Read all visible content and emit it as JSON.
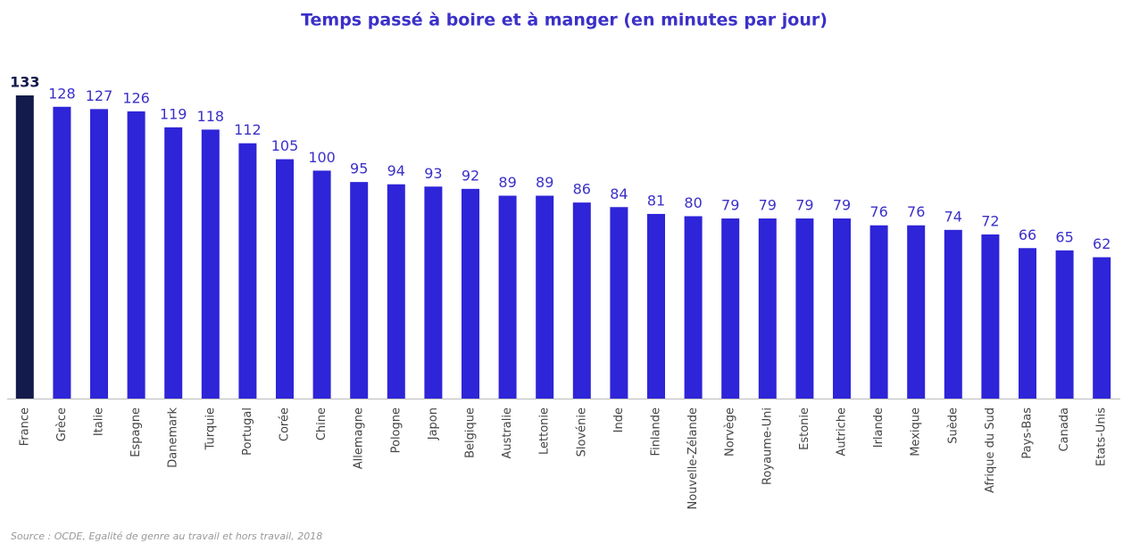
{
  "chart_data": {
    "type": "bar",
    "title": "Temps passé à boire et à manger (en minutes par jour)",
    "source": "Source : OCDE, Egalité de genre au travail et hors travail, 2018",
    "categories": [
      "France",
      "Grèce",
      "Italie",
      "Espagne",
      "Danemark",
      "Turquie",
      "Portugal",
      "Corée",
      "Chine",
      "Allemagne",
      "Pologne",
      "Japon",
      "Belgique",
      "Australie",
      "Lettonie",
      "Slovénie",
      "Inde",
      "Finlande",
      "Nouvelle-Zélande",
      "Norvège",
      "Royaume-Uni",
      "Estonie",
      "Autriche",
      "Irlande",
      "Mexique",
      "Suède",
      "Afrique du Sud",
      "Pays-Bas",
      "Canada",
      "Etats-Unis"
    ],
    "values": [
      133,
      128,
      127,
      126,
      119,
      118,
      112,
      105,
      100,
      95,
      94,
      93,
      92,
      89,
      89,
      86,
      84,
      81,
      80,
      79,
      79,
      79,
      79,
      76,
      76,
      74,
      72,
      66,
      65,
      62
    ],
    "color": "#2e24d8",
    "highlight": {
      "category": "France",
      "color": "#131a4c"
    }
  }
}
